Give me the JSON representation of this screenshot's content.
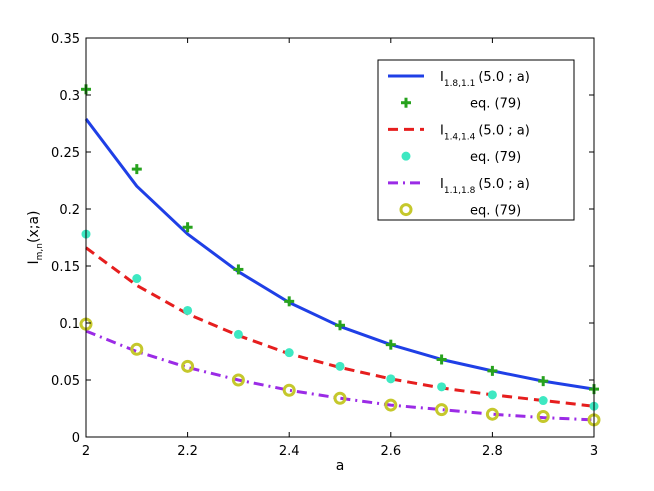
{
  "chart_data": {
    "type": "line",
    "xlabel": "a",
    "ylabel": {
      "main": "I",
      "sub": "m,n",
      "tail": "(x;a)"
    },
    "xlim": [
      2,
      3
    ],
    "ylim": [
      0,
      0.35
    ],
    "xticks": [
      2,
      2.2,
      2.4,
      2.6,
      2.8,
      3
    ],
    "xtick_labels": [
      "2",
      "2.2",
      "2.4",
      "2.6",
      "2.8",
      "3"
    ],
    "yticks": [
      0,
      0.05,
      0.1,
      0.15,
      0.2,
      0.25,
      0.3,
      0.35
    ],
    "ytick_labels": [
      "0",
      "0.05",
      "0.1",
      "0.15",
      "0.2",
      "0.25",
      "0.3",
      "0.35"
    ],
    "grid": false,
    "legend_position": "top-right",
    "series": [
      {
        "kind": "line",
        "style": "solid",
        "color": "#1f3fe6",
        "label": {
          "main": "I",
          "sub": "1.8,1.1",
          "tail": "(5.0 ; a)"
        },
        "x": [
          2,
          2.1,
          2.2,
          2.3,
          2.4,
          2.5,
          2.6,
          2.7,
          2.8,
          2.9,
          3
        ],
        "y": [
          0.279,
          0.22,
          0.178,
          0.145,
          0.118,
          0.097,
          0.081,
          0.068,
          0.058,
          0.049,
          0.042
        ]
      },
      {
        "kind": "marker",
        "marker": "plus",
        "color": "#27a21d",
        "label": {
          "main": "eq. (79)",
          "sub": "",
          "tail": ""
        },
        "x": [
          2,
          2.1,
          2.2,
          2.3,
          2.4,
          2.5,
          2.6,
          2.7,
          2.8,
          2.9,
          3
        ],
        "y": [
          0.305,
          0.235,
          0.184,
          0.147,
          0.119,
          0.098,
          0.081,
          0.068,
          0.058,
          0.049,
          0.042
        ]
      },
      {
        "kind": "line",
        "style": "dashed",
        "color": "#e61e1e",
        "label": {
          "main": "I",
          "sub": "1.4,1.4",
          "tail": "(5.0 ; a)"
        },
        "x": [
          2,
          2.1,
          2.2,
          2.3,
          2.4,
          2.5,
          2.6,
          2.7,
          2.8,
          2.9,
          3
        ],
        "y": [
          0.166,
          0.133,
          0.108,
          0.089,
          0.073,
          0.061,
          0.051,
          0.043,
          0.037,
          0.032,
          0.027
        ]
      },
      {
        "kind": "marker",
        "marker": "dot",
        "color": "#3ee8c2",
        "label": {
          "main": "eq. (79)",
          "sub": "",
          "tail": ""
        },
        "x": [
          2,
          2.1,
          2.2,
          2.3,
          2.4,
          2.5,
          2.6,
          2.7,
          2.8,
          2.9,
          3
        ],
        "y": [
          0.178,
          0.139,
          0.111,
          0.09,
          0.074,
          0.062,
          0.051,
          0.044,
          0.037,
          0.032,
          0.027
        ]
      },
      {
        "kind": "line",
        "style": "dashdot",
        "color": "#9b2be6",
        "label": {
          "main": "I",
          "sub": "1.1,1.8",
          "tail": "(5.0 ; a)"
        },
        "x": [
          2,
          2.1,
          2.2,
          2.3,
          2.4,
          2.5,
          2.6,
          2.7,
          2.8,
          2.9,
          3
        ],
        "y": [
          0.093,
          0.075,
          0.061,
          0.05,
          0.041,
          0.034,
          0.028,
          0.024,
          0.02,
          0.017,
          0.015
        ]
      },
      {
        "kind": "marker",
        "marker": "circle",
        "color": "#c5c82c",
        "label": {
          "main": "eq. (79)",
          "sub": "",
          "tail": ""
        },
        "x": [
          2,
          2.1,
          2.2,
          2.3,
          2.4,
          2.5,
          2.6,
          2.7,
          2.8,
          2.9,
          3
        ],
        "y": [
          0.099,
          0.077,
          0.062,
          0.05,
          0.041,
          0.034,
          0.028,
          0.024,
          0.02,
          0.018,
          0.015
        ]
      }
    ]
  }
}
